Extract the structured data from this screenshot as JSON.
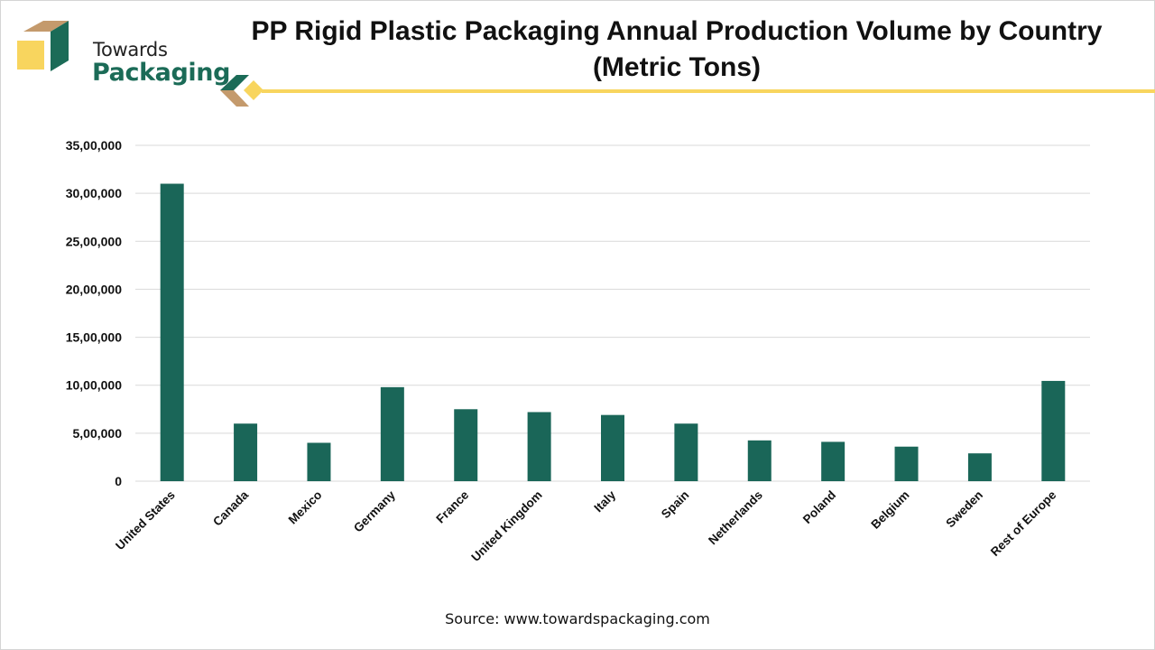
{
  "brand": {
    "line1": "Towards",
    "line2": "Packaging",
    "colors": {
      "green": "#1b6b57",
      "tan": "#c49a6c",
      "yellow": "#f8d55e"
    }
  },
  "source": "Source: www.towardspackaging.com",
  "chart_data": {
    "type": "bar",
    "title": "PP Rigid Plastic Packaging Annual Production Volume by Country",
    "subtitle": "(Metric Tons)",
    "xlabel": "",
    "ylabel": "",
    "categories": [
      "United States",
      "Canada",
      "Mexico",
      "Germany",
      "France",
      "United Kingdom",
      "Italy",
      "Spain",
      "Netherlands",
      "Poland",
      "Belgium",
      "Sweden",
      "Rest of Europe"
    ],
    "values": [
      3100000,
      600000,
      400000,
      980000,
      750000,
      720000,
      690000,
      600000,
      425000,
      410000,
      360000,
      290000,
      1045000
    ],
    "ylim": [
      0,
      3500000
    ],
    "yticks": [
      0,
      500000,
      1000000,
      1500000,
      2000000,
      2500000,
      3000000,
      3500000
    ],
    "ytick_labels": [
      "0",
      "5,00,000",
      "10,00,000",
      "15,00,000",
      "20,00,000",
      "25,00,000",
      "30,00,000",
      "35,00,000"
    ],
    "grid": true,
    "legend": "none",
    "bar_color": "#1a6658",
    "grid_color": "#d9d9d9"
  }
}
